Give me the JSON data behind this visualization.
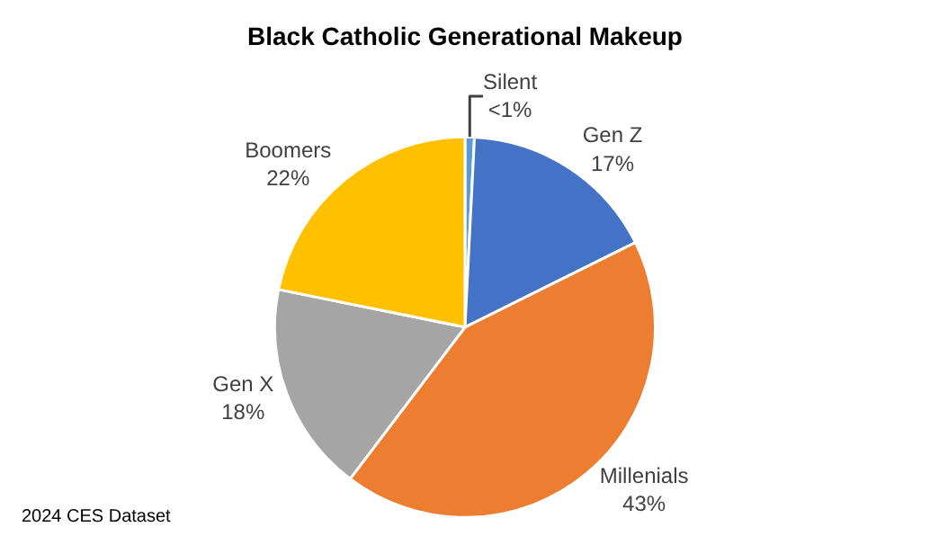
{
  "chart_data": {
    "type": "pie",
    "title": "Black Catholic Generational Makeup",
    "categories": [
      "Silent",
      "Gen Z",
      "Millenials",
      "Gen X",
      "Boomers"
    ],
    "values": [
      0.8,
      17,
      43,
      18,
      22
    ],
    "value_labels": [
      "<1%",
      "17%",
      "43%",
      "18%",
      "22%"
    ],
    "colors": [
      "#5b9bd5",
      "#4472c4",
      "#ed7d31",
      "#a5a5a5",
      "#ffc000"
    ],
    "legend": false,
    "annotations": [
      "2024 CES Dataset"
    ]
  }
}
